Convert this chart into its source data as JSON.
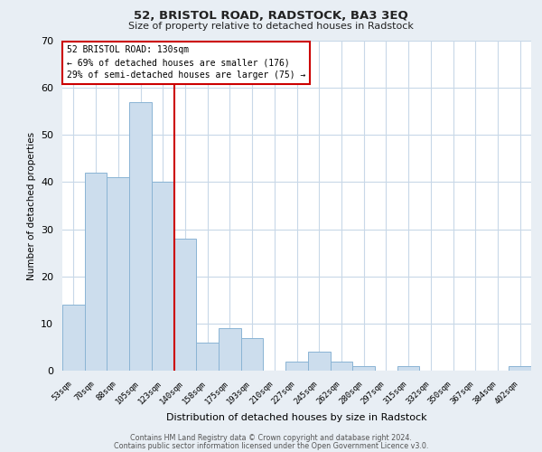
{
  "title": "52, BRISTOL ROAD, RADSTOCK, BA3 3EQ",
  "subtitle": "Size of property relative to detached houses in Radstock",
  "xlabel": "Distribution of detached houses by size in Radstock",
  "ylabel": "Number of detached properties",
  "bar_labels": [
    "53sqm",
    "70sqm",
    "88sqm",
    "105sqm",
    "123sqm",
    "140sqm",
    "158sqm",
    "175sqm",
    "193sqm",
    "210sqm",
    "227sqm",
    "245sqm",
    "262sqm",
    "280sqm",
    "297sqm",
    "315sqm",
    "332sqm",
    "350sqm",
    "367sqm",
    "384sqm",
    "402sqm"
  ],
  "bar_values": [
    14,
    42,
    41,
    57,
    40,
    28,
    6,
    9,
    7,
    0,
    2,
    4,
    2,
    1,
    0,
    1,
    0,
    0,
    0,
    0,
    1
  ],
  "bar_color": "#ccdded",
  "bar_edge_color": "#8ab4d4",
  "ylim": [
    0,
    70
  ],
  "yticks": [
    0,
    10,
    20,
    30,
    40,
    50,
    60,
    70
  ],
  "vline_x": 4.5,
  "vline_color": "#cc0000",
  "annotation_title": "52 BRISTOL ROAD: 130sqm",
  "annotation_line1": "← 69% of detached houses are smaller (176)",
  "annotation_line2": "29% of semi-detached houses are larger (75) →",
  "annotation_box_color": "#cc0000",
  "footer1": "Contains HM Land Registry data © Crown copyright and database right 2024.",
  "footer2": "Contains public sector information licensed under the Open Government Licence v3.0.",
  "background_color": "#e8eef4",
  "plot_background_color": "#ffffff",
  "grid_color": "#c8d8e8"
}
